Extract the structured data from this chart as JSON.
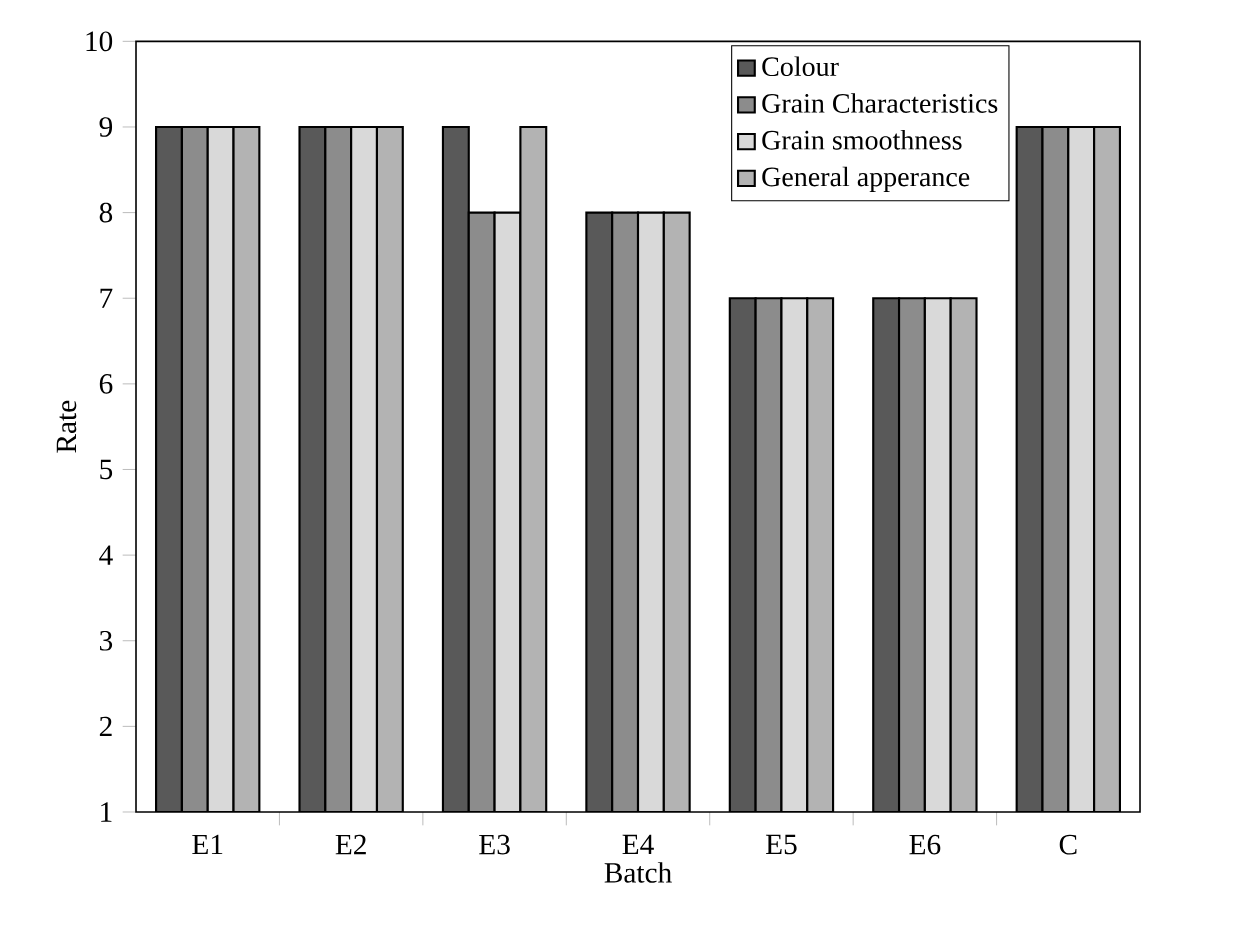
{
  "chart_data": {
    "type": "bar",
    "xlabel": "Batch",
    "ylabel": "Rate",
    "categories": [
      "E1",
      "E2",
      "E3",
      "E4",
      "E5",
      "E6",
      "C"
    ],
    "series": [
      {
        "name": "Colour",
        "color": "#595959",
        "values": [
          9,
          9,
          9,
          8,
          7,
          7,
          9
        ]
      },
      {
        "name": "Grain Characteristics",
        "color": "#8c8c8c",
        "values": [
          9,
          9,
          8,
          8,
          7,
          7,
          9
        ]
      },
      {
        "name": "Grain smoothness",
        "color": "#d9d9d9",
        "values": [
          9,
          9,
          8,
          8,
          7,
          7,
          9
        ]
      },
      {
        "name": "General apperance",
        "color": "#b3b3b3",
        "values": [
          9,
          9,
          9,
          8,
          7,
          7,
          9
        ]
      }
    ],
    "ylim": [
      1,
      10
    ],
    "yticks": [
      1,
      2,
      3,
      4,
      5,
      6,
      7,
      8,
      9,
      10
    ],
    "grid": false,
    "legend": "top right"
  }
}
